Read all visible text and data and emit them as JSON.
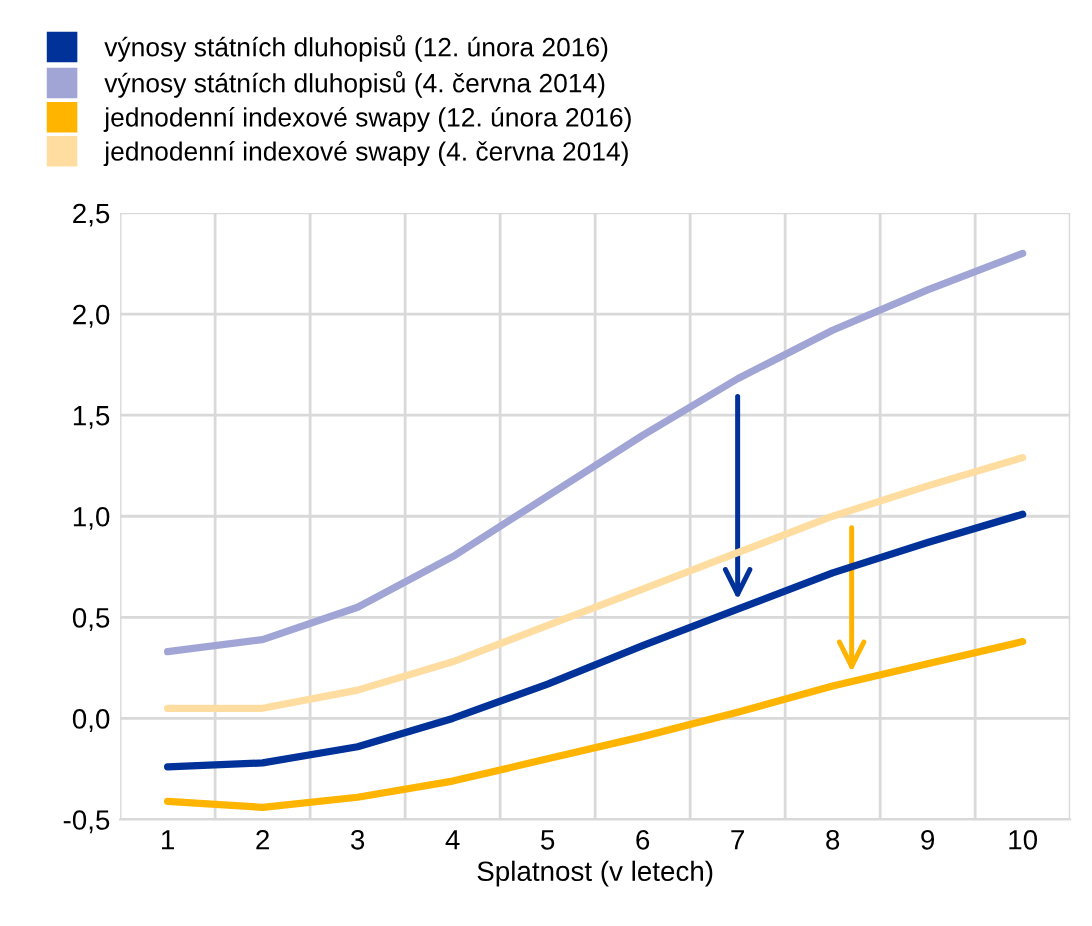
{
  "chart_data": {
    "type": "line",
    "xlabel": "Splatnost (v letech)",
    "categories": [
      "1",
      "2",
      "3",
      "4",
      "5",
      "6",
      "7",
      "8",
      "9",
      "10"
    ],
    "series": [
      {
        "name": "výnosy státních dluhopisů (12. února 2016)",
        "color": "#003299",
        "values": [
          -0.24,
          -0.22,
          -0.14,
          0.0,
          0.17,
          0.36,
          0.54,
          0.72,
          0.87,
          1.01
        ]
      },
      {
        "name": "výnosy státních dluhopisů (4. června 2014)",
        "color": "#a0a5d6",
        "values": [
          0.33,
          0.39,
          0.55,
          0.8,
          1.1,
          1.4,
          1.68,
          1.92,
          2.12,
          2.3
        ]
      },
      {
        "name": "jednodenní indexové swapy (12. února 2016)",
        "color": "#ffb400",
        "values": [
          -0.41,
          -0.44,
          -0.39,
          -0.31,
          -0.2,
          -0.09,
          0.03,
          0.16,
          0.27,
          0.38
        ]
      },
      {
        "name": "jednodenní indexové swapy (4. června 2014)",
        "color": "#ffdda0",
        "values": [
          0.05,
          0.05,
          0.14,
          0.28,
          0.46,
          0.64,
          0.82,
          1.0,
          1.15,
          1.29
        ]
      }
    ],
    "ylim": [
      -0.5,
      2.5
    ],
    "yticks": [
      {
        "value": -0.5,
        "label": "-0,5"
      },
      {
        "value": 0.0,
        "label": "0,0"
      },
      {
        "value": 0.5,
        "label": "0,5"
      },
      {
        "value": 1.0,
        "label": "1,0"
      },
      {
        "value": 1.5,
        "label": "1,5"
      },
      {
        "value": 2.0,
        "label": "2,0"
      },
      {
        "value": 2.5,
        "label": "2,5"
      }
    ],
    "grid": true,
    "legend": "top",
    "marker": "none",
    "line_style": "solid"
  }
}
